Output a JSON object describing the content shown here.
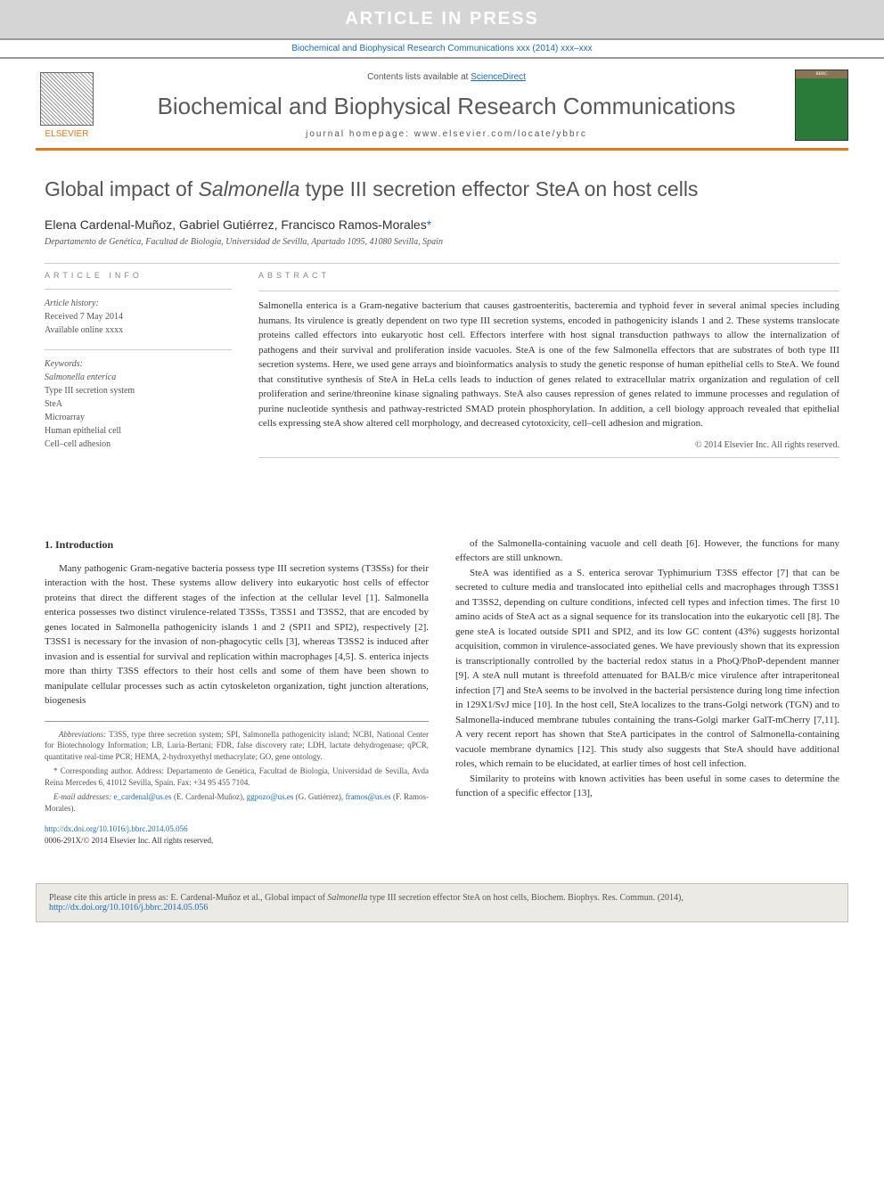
{
  "banner": {
    "text": "ARTICLE IN PRESS"
  },
  "citation_strip": "Biochemical and Biophysical Research Communications xxx (2014) xxx–xxx",
  "header": {
    "contents_prefix": "Contents lists available at ",
    "contents_link": "ScienceDirect",
    "journal_title": "Biochemical and Biophysical Research Communications",
    "homepage_prefix": "journal homepage: ",
    "homepage_url": "www.elsevier.com/locate/ybbrc",
    "publisher": "ELSEVIER",
    "cover_text": "BBRC"
  },
  "article": {
    "title_pre": "Global impact of ",
    "title_em": "Salmonella",
    "title_post": " type III secretion effector SteA on host cells",
    "authors": "Elena Cardenal-Muñoz, Gabriel Gutiérrez, Francisco Ramos-Morales",
    "corr_marker": "*",
    "affiliation": "Departamento de Genética, Facultad de Biología, Universidad de Sevilla, Apartado 1095, 41080 Sevilla, Spain"
  },
  "info": {
    "heading": "ARTICLE INFO",
    "history_label": "Article history:",
    "received": "Received 7 May 2014",
    "online": "Available online xxxx",
    "keywords_label": "Keywords:",
    "kw1": "Salmonella enterica",
    "kw2": "Type III secretion system",
    "kw3": "SteA",
    "kw4": "Microarray",
    "kw5": "Human epithelial cell",
    "kw6": "Cell–cell adhesion"
  },
  "abstract": {
    "heading": "ABSTRACT",
    "text": "Salmonella enterica is a Gram-negative bacterium that causes gastroenteritis, bacteremia and typhoid fever in several animal species including humans. Its virulence is greatly dependent on two type III secretion systems, encoded in pathogenicity islands 1 and 2. These systems translocate proteins called effectors into eukaryotic host cell. Effectors interfere with host signal transduction pathways to allow the internalization of pathogens and their survival and proliferation inside vacuoles. SteA is one of the few Salmonella effectors that are substrates of both type III secretion systems. Here, we used gene arrays and bioinformatics analysis to study the genetic response of human epithelial cells to SteA. We found that constitutive synthesis of SteA in HeLa cells leads to induction of genes related to extracellular matrix organization and regulation of cell proliferation and serine/threonine kinase signaling pathways. SteA also causes repression of genes related to immune processes and regulation of purine nucleotide synthesis and pathway-restricted SMAD protein phosphorylation. In addition, a cell biology approach revealed that epithelial cells expressing steA show altered cell morphology, and decreased cytotoxicity, cell–cell adhesion and migration.",
    "copyright": "© 2014 Elsevier Inc. All rights reserved."
  },
  "body": {
    "intro_heading": "1. Introduction",
    "col1_p1": "Many pathogenic Gram-negative bacteria possess type III secretion systems (T3SSs) for their interaction with the host. These systems allow delivery into eukaryotic host cells of effector proteins that direct the different stages of the infection at the cellular level [1]. Salmonella enterica possesses two distinct virulence-related T3SSs, T3SS1 and T3SS2, that are encoded by genes located in Salmonella pathogenicity islands 1 and 2 (SPI1 and SPI2), respectively [2]. T3SS1 is necessary for the invasion of non-phagocytic cells [3], whereas T3SS2 is induced after invasion and is essential for survival and replication within macrophages [4,5]. S. enterica injects more than thirty T3SS effectors to their host cells and some of them have been shown to manipulate cellular processes such as actin cytoskeleton organization, tight junction alterations, biogenesis",
    "col2_p1": "of the Salmonella-containing vacuole and cell death [6]. However, the functions for many effectors are still unknown.",
    "col2_p2": "SteA was identified as a S. enterica serovar Typhimurium T3SS effector [7] that can be secreted to culture media and translocated into epithelial cells and macrophages through T3SS1 and T3SS2, depending on culture conditions, infected cell types and infection times. The first 10 amino acids of SteA act as a signal sequence for its translocation into the eukaryotic cell [8]. The gene steA is located outside SPI1 and SPI2, and its low GC content (43%) suggests horizontal acquisition, common in virulence-associated genes. We have previously shown that its expression is transcriptionally controlled by the bacterial redox status in a PhoQ/PhoP-dependent manner [9]. A steA null mutant is threefold attenuated for BALB/c mice virulence after intraperitoneal infection [7] and SteA seems to be involved in the bacterial persistence during long time infection in 129X1/SvJ mice [10]. In the host cell, SteA localizes to the trans-Golgi network (TGN) and to Salmonella-induced membrane tubules containing the trans-Golgi marker GalT-mCherry [7,11]. A very recent report has shown that SteA participates in the control of Salmonella-containing vacuole membrane dynamics [12]. This study also suggests that SteA should have additional roles, which remain to be elucidated, at earlier times of host cell infection.",
    "col2_p3": "Similarity to proteins with known activities has been useful in some cases to determine the function of a specific effector [13],"
  },
  "footnotes": {
    "abbrev_label": "Abbreviations:",
    "abbrev_text": " T3SS, type three secretion system; SPI, Salmonella pathogenicity island; NCBI, National Center for Biotechnology Information; LB, Luria-Bertani; FDR, false discovery rate; LDH, lactate dehydrogenase; qPCR, quantitative real-time PCR; HEMA, 2-hydroxyethyl methacrylate; GO, gene ontology.",
    "corr_label": "* Corresponding author.",
    "corr_text": " Address: Departamento de Genética, Facultad de Biología, Universidad de Sevilla, Avda Reina Mercedes 6, 41012 Sevilla, Spain. Fax: +34 95 455 7104.",
    "email_label": "E-mail addresses:",
    "email1": "e_cardenal@us.es",
    "email1_name": " (E. Cardenal-Muñoz), ",
    "email2": "ggpozo@us.es",
    "email2_name": " (G. Gutiérrez), ",
    "email3": "framos@us.es",
    "email3_name": " (F. Ramos-Morales)."
  },
  "doi": {
    "link": "http://dx.doi.org/10.1016/j.bbrc.2014.05.056",
    "issn": "0006-291X/© 2014 Elsevier Inc. All rights reserved."
  },
  "citation_box": {
    "prefix": "Please cite this article in press as: E. Cardenal-Muñoz et al., Global impact of ",
    "em": "Salmonella",
    "post": " type III secretion effector SteA on host cells, Biochem. Biophys. Res. Commun. (2014), ",
    "link": "http://dx.doi.org/10.1016/j.bbrc.2014.05.056"
  },
  "colors": {
    "orange": "#e67817",
    "link_blue": "#1a6db5",
    "gray_text": "#555",
    "banner_bg": "#d5d5d5"
  }
}
